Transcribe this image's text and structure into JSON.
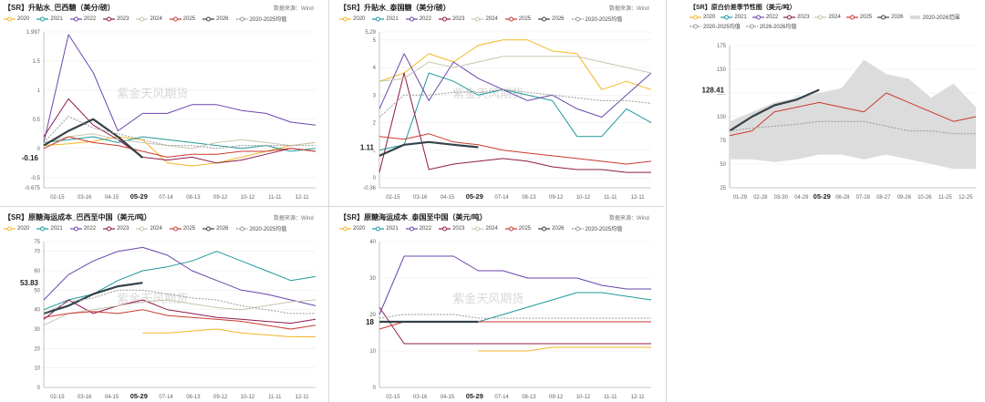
{
  "watermark": "紫金天风期货",
  "colors": {
    "2020": "#f2b824",
    "2021": "#21989b",
    "2022": "#6a45ad",
    "2023": "#8d1a4d",
    "2024": "#c9c4ae",
    "2025": "#c93a2f",
    "2026": "#34424a",
    "avg": "#9a9a9a"
  },
  "chart_data": [
    {
      "type": "line",
      "title": "【SR】升贴水_巴西糖（美分/磅）",
      "source": "数据来源：Wind",
      "legend": [
        "2020",
        "2021",
        "2022",
        "2023",
        "2024",
        "2025",
        "2026",
        "2020-2025均值"
      ],
      "ylim": [
        -0.675,
        1.997
      ],
      "yticks": [
        "1.997",
        "1.5",
        "1",
        "0.5",
        "0",
        "-0.5",
        "-0.675"
      ],
      "xticks": [
        "02-15",
        "03-16",
        "04-15",
        "05-29",
        "07-14",
        "08-13",
        "09-12",
        "10-12",
        "11-11",
        "12-11"
      ],
      "current_label": "-0.16",
      "series": [
        {
          "name": "2020",
          "values": [
            0.05,
            0.08,
            0.12,
            0.2,
            0.15,
            -0.25,
            -0.3,
            -0.25,
            -0.15,
            -0.05,
            0.05,
            0.1
          ]
        },
        {
          "name": "2021",
          "values": [
            0.1,
            0.15,
            0.2,
            0.1,
            0.2,
            0.15,
            0.1,
            0.05,
            0.0,
            0.05,
            -0.05,
            0.0
          ]
        },
        {
          "name": "2022",
          "values": [
            0.1,
            1.95,
            1.3,
            0.3,
            0.6,
            0.6,
            0.75,
            0.75,
            0.65,
            0.6,
            0.45,
            0.4
          ]
        },
        {
          "name": "2023",
          "values": [
            0.2,
            0.85,
            0.4,
            0.15,
            -0.15,
            -0.2,
            -0.15,
            -0.25,
            -0.2,
            -0.1,
            0.0,
            -0.05
          ]
        },
        {
          "name": "2024",
          "values": [
            0.1,
            0.2,
            0.25,
            0.15,
            0.1,
            0.05,
            0.0,
            0.1,
            0.15,
            0.1,
            0.05,
            0.1
          ]
        },
        {
          "name": "2025",
          "values": [
            0.0,
            0.2,
            0.1,
            0.05,
            -0.05,
            -0.15,
            -0.1,
            -0.1,
            -0.05,
            -0.05,
            0.0,
            -0.05
          ]
        },
        {
          "name": "2026",
          "values": [
            0.05,
            0.3,
            0.5,
            0.2,
            -0.16,
            null,
            null,
            null,
            null,
            null,
            null,
            null
          ]
        },
        {
          "name": "2020-2025均值",
          "values": [
            0.1,
            0.55,
            0.35,
            0.25,
            0.15,
            0.05,
            0.05,
            0.0,
            0.05,
            0.05,
            0.05,
            0.05
          ]
        }
      ]
    },
    {
      "type": "line",
      "title": "【SR】升贴水_泰国糖（美分/磅）",
      "source": "数据来源：Wind",
      "legend": [
        "2020",
        "2021",
        "2022",
        "2023",
        "2024",
        "2025",
        "2026",
        "2020-2025均值"
      ],
      "ylim": [
        -0.36,
        5.29
      ],
      "yticks": [
        "5.29",
        "5",
        "4",
        "3",
        "2",
        "1",
        "0",
        "-0.36"
      ],
      "xticks": [
        "02-15",
        "03-16",
        "04-15",
        "05-29",
        "07-14",
        "08-13",
        "09-12",
        "10-12",
        "11-11",
        "12-11"
      ],
      "current_label": "1.11",
      "series": [
        {
          "name": "2020",
          "values": [
            3.5,
            3.8,
            4.5,
            4.2,
            4.8,
            5.0,
            5.0,
            4.6,
            4.5,
            3.2,
            3.5,
            3.2
          ]
        },
        {
          "name": "2021",
          "values": [
            1.0,
            1.2,
            3.8,
            3.5,
            3.0,
            3.2,
            3.0,
            2.8,
            1.5,
            1.5,
            2.5,
            2.0
          ]
        },
        {
          "name": "2022",
          "values": [
            2.5,
            4.5,
            2.8,
            4.2,
            3.6,
            3.2,
            2.8,
            3.0,
            2.5,
            2.2,
            3.0,
            3.8
          ]
        },
        {
          "name": "2023",
          "values": [
            0.2,
            3.8,
            0.3,
            0.5,
            0.6,
            0.7,
            0.6,
            0.4,
            0.3,
            0.3,
            0.2,
            0.2
          ]
        },
        {
          "name": "2024",
          "values": [
            3.5,
            3.6,
            4.2,
            4.0,
            4.2,
            4.4,
            4.4,
            4.4,
            4.4,
            4.2,
            4.0,
            3.8
          ]
        },
        {
          "name": "2025",
          "values": [
            1.5,
            1.4,
            1.6,
            1.3,
            1.2,
            1.0,
            0.9,
            0.8,
            0.7,
            0.6,
            0.5,
            0.6
          ]
        },
        {
          "name": "2026",
          "values": [
            0.8,
            1.2,
            1.3,
            1.2,
            1.11,
            null,
            null,
            null,
            null,
            null,
            null,
            null
          ]
        },
        {
          "name": "2020-2025均值",
          "values": [
            2.2,
            3.0,
            3.0,
            3.1,
            3.1,
            3.2,
            3.1,
            3.0,
            2.9,
            2.8,
            2.8,
            2.7
          ]
        }
      ]
    },
    {
      "type": "area",
      "title": "【SR】原白价差季节性图（美元/吨）",
      "source": "",
      "legend": [
        "2020",
        "2021",
        "2022",
        "2023",
        "2024",
        "2025",
        "2026",
        "2020-2026范围",
        "2020-2025均值",
        "2026-2026均值"
      ],
      "ylim": [
        25,
        175
      ],
      "yticks": [
        "175",
        "150",
        "125",
        "100",
        "75",
        "50",
        "25"
      ],
      "xticks": [
        "01-29",
        "02-28",
        "03-30",
        "04-29",
        "05-29",
        "06-28",
        "07-28",
        "08-27",
        "09-26",
        "10-26",
        "11-25",
        "12-25"
      ],
      "current_label": "128.41",
      "series": [
        {
          "name": "2020-2026范围 上沿",
          "values": [
            95,
            105,
            115,
            120,
            125,
            130,
            160,
            145,
            140,
            120,
            135,
            110
          ]
        },
        {
          "name": "2020-2026范围 下沿",
          "values": [
            55,
            55,
            52,
            55,
            60,
            60,
            55,
            60,
            55,
            50,
            45,
            45
          ]
        },
        {
          "name": "2025",
          "values": [
            80,
            85,
            105,
            110,
            115,
            110,
            105,
            125,
            115,
            105,
            95,
            100
          ]
        },
        {
          "name": "2026",
          "values": [
            85,
            100,
            112,
            118,
            128.41,
            null,
            null,
            null,
            null,
            null,
            null,
            null
          ]
        },
        {
          "name": "2020-2025均值",
          "values": [
            85,
            88,
            90,
            92,
            95,
            95,
            95,
            90,
            85,
            85,
            82,
            82
          ]
        }
      ]
    },
    {
      "type": "line",
      "title": "【SR】原糖海运成本_巴西至中国（美元/吨）",
      "source": "数据来源：Wind",
      "legend": [
        "2020",
        "2021",
        "2022",
        "2023",
        "2024",
        "2025",
        "2026",
        "2020-2025均值"
      ],
      "ylim": [
        0,
        75
      ],
      "yticks": [
        "75",
        "70",
        "60",
        "50",
        "40",
        "30",
        "20",
        "10",
        "0"
      ],
      "xticks": [
        "02-15",
        "03-16",
        "04-15",
        "05-29",
        "07-14",
        "08-13",
        "09-12",
        "10-12",
        "11-11",
        "12-11"
      ],
      "current_label": "53.83",
      "series": [
        {
          "name": "2020",
          "values": [
            null,
            null,
            null,
            null,
            28,
            28,
            29,
            30,
            28,
            27,
            26,
            26
          ]
        },
        {
          "name": "2021",
          "values": [
            40,
            45,
            48,
            55,
            60,
            62,
            65,
            70,
            65,
            60,
            55,
            57
          ]
        },
        {
          "name": "2022",
          "values": [
            45,
            58,
            65,
            70,
            72,
            68,
            60,
            55,
            50,
            48,
            45,
            42
          ]
        },
        {
          "name": "2023",
          "values": [
            35,
            45,
            38,
            42,
            45,
            40,
            38,
            36,
            35,
            34,
            33,
            35
          ]
        },
        {
          "name": "2024",
          "values": [
            32,
            38,
            40,
            42,
            44,
            45,
            43,
            41,
            40,
            42,
            44,
            45
          ]
        },
        {
          "name": "2025",
          "values": [
            36,
            38,
            39,
            38,
            40,
            37,
            36,
            35,
            34,
            32,
            30,
            32
          ]
        },
        {
          "name": "2026",
          "values": [
            38,
            42,
            48,
            52,
            53.83,
            null,
            null,
            null,
            null,
            null,
            null,
            null
          ]
        },
        {
          "name": "2020-2025均值",
          "values": [
            38,
            44,
            46,
            50,
            50,
            48,
            46,
            45,
            42,
            40,
            38,
            38
          ]
        }
      ]
    },
    {
      "type": "line",
      "title": "【SR】原糖海运成本_泰国至中国（美元/吨）",
      "source": "数据来源：Wind",
      "legend": [
        "2020",
        "2021",
        "2022",
        "2023",
        "2024",
        "2025",
        "2026",
        "2020-2025均值"
      ],
      "ylim": [
        0,
        40
      ],
      "yticks": [
        "40",
        "30",
        "20",
        "10",
        "0"
      ],
      "xticks": [
        "02-15",
        "03-16",
        "04-15",
        "05-29",
        "07-14",
        "08-13",
        "09-12",
        "10-12",
        "11-11",
        "12-11"
      ],
      "current_label": "18",
      "series": [
        {
          "name": "2020",
          "values": [
            null,
            null,
            null,
            null,
            10,
            10,
            10,
            11,
            11,
            11,
            11,
            11
          ]
        },
        {
          "name": "2021",
          "values": [
            18,
            18,
            18,
            18,
            18,
            20,
            22,
            24,
            26,
            26,
            25,
            24
          ]
        },
        {
          "name": "2022",
          "values": [
            20,
            36,
            36,
            36,
            32,
            32,
            30,
            30,
            30,
            28,
            27,
            27
          ]
        },
        {
          "name": "2023",
          "values": [
            22,
            12,
            12,
            12,
            12,
            12,
            12,
            12,
            12,
            12,
            12,
            12
          ]
        },
        {
          "name": "2024",
          "values": [
            18,
            18,
            18,
            18,
            18,
            18,
            18,
            18,
            18,
            18,
            18,
            18
          ]
        },
        {
          "name": "2025",
          "values": [
            16,
            18,
            18,
            18,
            18,
            18,
            18,
            18,
            18,
            18,
            18,
            18
          ]
        },
        {
          "name": "2026",
          "values": [
            18,
            18,
            18,
            18,
            18,
            null,
            null,
            null,
            null,
            null,
            null,
            null
          ]
        },
        {
          "name": "2020-2025均值",
          "values": [
            19,
            20,
            20,
            20,
            19,
            19,
            19,
            19,
            19,
            19,
            19,
            19
          ]
        }
      ]
    }
  ]
}
